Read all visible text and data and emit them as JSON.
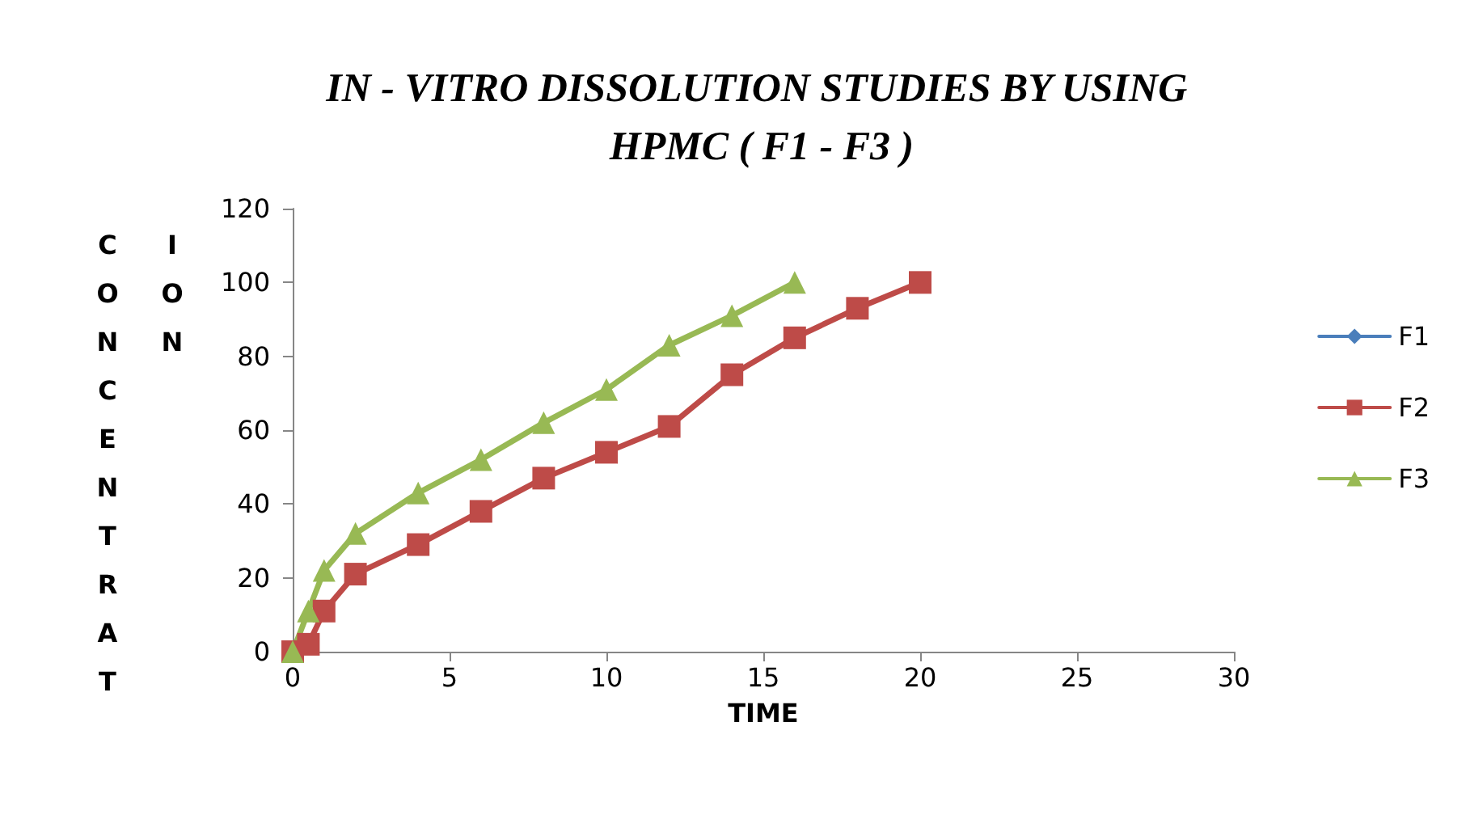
{
  "chart_data": {
    "type": "line",
    "title": "IN - VITRO DISSOLUTION STUDIES BY USING HPMC ( F1 - F3 )",
    "xlabel": "TIME",
    "ylabel": "CONCENTRATION",
    "x": [
      0,
      0.5,
      1,
      2,
      4,
      6,
      8,
      10,
      12,
      14,
      16,
      18,
      20
    ],
    "series": [
      {
        "name": "F1",
        "color": "#4a7ebb",
        "marker": "diamond",
        "values": [
          null,
          null,
          null,
          null,
          null,
          null,
          null,
          null,
          null,
          null,
          null,
          null,
          null
        ]
      },
      {
        "name": "F2",
        "color": "#be4b48",
        "marker": "square",
        "values": [
          0,
          2,
          11,
          21,
          29,
          38,
          47,
          54,
          61,
          75,
          85,
          93,
          100
        ]
      },
      {
        "name": "F3",
        "color": "#98b954",
        "marker": "triangle",
        "x": [
          0,
          0.5,
          1,
          2,
          4,
          6,
          8,
          10,
          12,
          14,
          16
        ],
        "values": [
          0,
          11,
          22,
          32,
          43,
          52,
          62,
          71,
          83,
          91,
          100
        ]
      }
    ],
    "xlim": [
      0,
      30
    ],
    "xticks": [
      0,
      5,
      10,
      15,
      20,
      25,
      30
    ],
    "ylim": [
      0,
      120
    ],
    "yticks": [
      0,
      20,
      40,
      60,
      80,
      100,
      120
    ],
    "grid": false,
    "legend": "right",
    "line_style": "solid"
  }
}
